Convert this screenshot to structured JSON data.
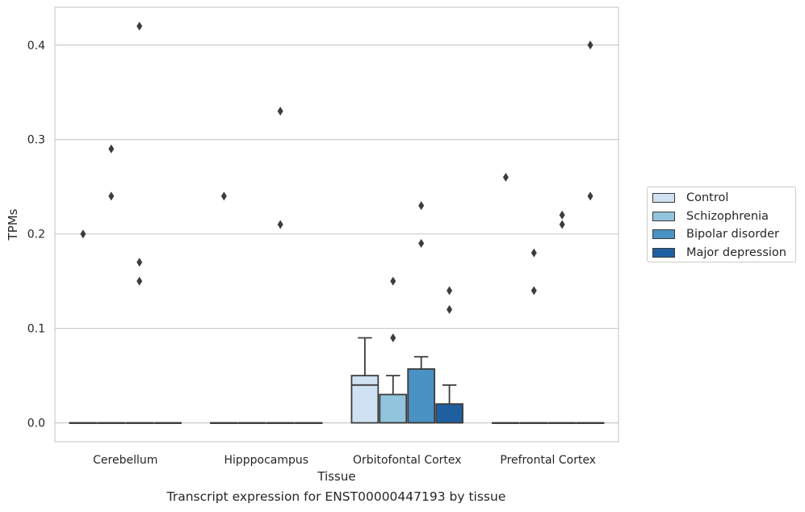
{
  "chart_data": {
    "type": "boxplot",
    "caption": "Transcript expression for ENST00000447193 by tissue",
    "xlabel": "Tissue",
    "ylabel": "TPMs",
    "ylim": [
      -0.02,
      0.44
    ],
    "yticks": [
      0.0,
      0.1,
      0.2,
      0.3,
      0.4
    ],
    "ytick_labels": [
      "0.0",
      "0.1",
      "0.2",
      "0.3",
      "0.4"
    ],
    "grid": "horizontal",
    "legend_placement": "right",
    "categories": [
      "Cerebellum",
      "Hipppocampus",
      "Orbitofontal Cortex",
      "Prefrontal Cortex"
    ],
    "series": [
      {
        "name": "Control",
        "color": "#cfe1f2",
        "boxes": [
          {
            "q1": 0,
            "median": 0,
            "q3": 0,
            "whisker_low": 0,
            "whisker_high": 0,
            "outliers": [
              0.2
            ]
          },
          {
            "q1": 0,
            "median": 0,
            "q3": 0,
            "whisker_low": 0,
            "whisker_high": 0,
            "outliers": [
              0.24
            ]
          },
          {
            "q1": 0,
            "median": 0.04,
            "q3": 0.05,
            "whisker_low": 0,
            "whisker_high": 0.09,
            "outliers": []
          },
          {
            "q1": 0,
            "median": 0,
            "q3": 0,
            "whisker_low": 0,
            "whisker_high": 0,
            "outliers": [
              0.26
            ]
          }
        ]
      },
      {
        "name": "Schizophrenia",
        "color": "#93c4de",
        "boxes": [
          {
            "q1": 0,
            "median": 0,
            "q3": 0,
            "whisker_low": 0,
            "whisker_high": 0,
            "outliers": [
              0.29,
              0.24
            ]
          },
          {
            "q1": 0,
            "median": 0,
            "q3": 0,
            "whisker_low": 0,
            "whisker_high": 0,
            "outliers": []
          },
          {
            "q1": 0,
            "median": 0,
            "q3": 0.03,
            "whisker_low": 0,
            "whisker_high": 0.05,
            "outliers": [
              0.15,
              0.09
            ]
          },
          {
            "q1": 0,
            "median": 0,
            "q3": 0,
            "whisker_low": 0,
            "whisker_high": 0,
            "outliers": [
              0.18,
              0.14
            ]
          }
        ]
      },
      {
        "name": "Bipolar disorder",
        "color": "#4a91c4",
        "boxes": [
          {
            "q1": 0,
            "median": 0,
            "q3": 0,
            "whisker_low": 0,
            "whisker_high": 0,
            "outliers": [
              0.42,
              0.17,
              0.15
            ]
          },
          {
            "q1": 0,
            "median": 0,
            "q3": 0,
            "whisker_low": 0,
            "whisker_high": 0,
            "outliers": [
              0.33,
              0.21
            ]
          },
          {
            "q1": 0,
            "median": 0,
            "q3": 0.057,
            "whisker_low": 0,
            "whisker_high": 0.07,
            "outliers": [
              0.23,
              0.19
            ]
          },
          {
            "q1": 0,
            "median": 0,
            "q3": 0,
            "whisker_low": 0,
            "whisker_high": 0,
            "outliers": [
              0.22,
              0.21
            ]
          }
        ]
      },
      {
        "name": "Major depression",
        "color": "#1f5fa0",
        "boxes": [
          {
            "q1": 0,
            "median": 0,
            "q3": 0,
            "whisker_low": 0,
            "whisker_high": 0,
            "outliers": []
          },
          {
            "q1": 0,
            "median": 0,
            "q3": 0,
            "whisker_low": 0,
            "whisker_high": 0,
            "outliers": []
          },
          {
            "q1": 0,
            "median": 0,
            "q3": 0.02,
            "whisker_low": 0,
            "whisker_high": 0.04,
            "outliers": [
              0.14,
              0.12
            ]
          },
          {
            "q1": 0,
            "median": 0,
            "q3": 0,
            "whisker_low": 0,
            "whisker_high": 0,
            "outliers": [
              0.4,
              0.24
            ]
          }
        ]
      }
    ]
  }
}
